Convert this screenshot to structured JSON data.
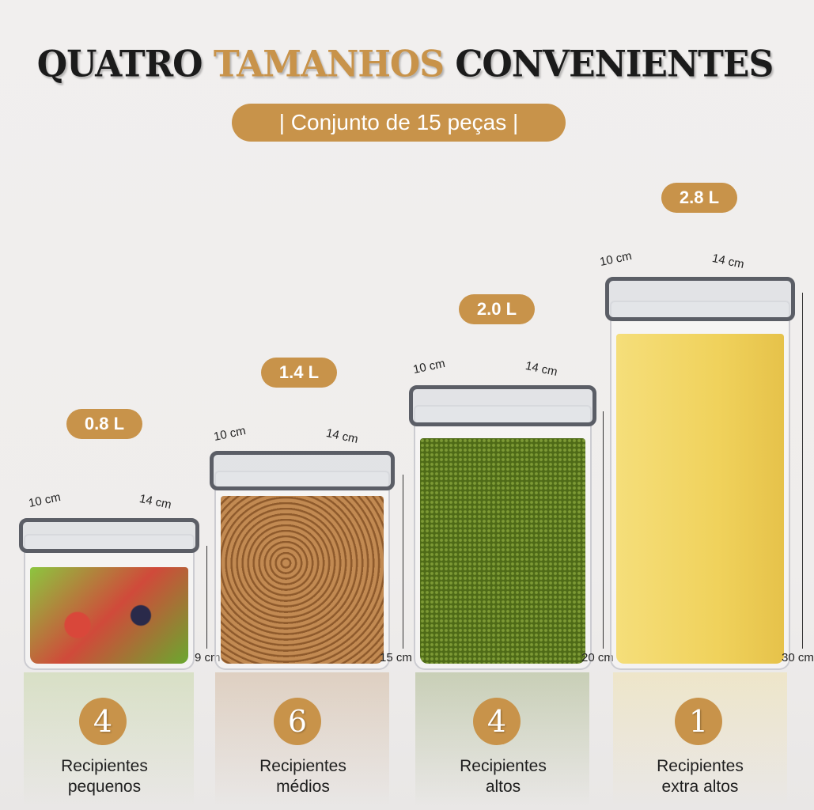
{
  "header": {
    "title_part1": "QUATRO",
    "title_part2": "TAMANHOS",
    "title_part3": "CONVENIENTES",
    "subtitle": "| Conjunto de 15 peças |"
  },
  "colors": {
    "accent": "#c8934a",
    "lid": "#5b5e66",
    "text": "#1e1e1e"
  },
  "products": [
    {
      "volume": "0.8 L",
      "width": "10 cm",
      "length": "14 cm",
      "height": "9 cm",
      "count": "4",
      "label_line1": "Recipientes",
      "label_line2": "pequenos",
      "content_color": "#7bb03a"
    },
    {
      "volume": "1.4 L",
      "width": "10 cm",
      "length": "14 cm",
      "height": "15 cm",
      "count": "6",
      "label_line1": "Recipientes",
      "label_line2": "médios",
      "content_color": "#b5804a"
    },
    {
      "volume": "2.0 L",
      "width": "10 cm",
      "length": "14 cm",
      "height": "20 cm",
      "count": "4",
      "label_line1": "Recipientes",
      "label_line2": "altos",
      "content_color": "#5d7d1f"
    },
    {
      "volume": "2.8 L",
      "width": "10 cm",
      "length": "14 cm",
      "height": "30 cm",
      "count": "1",
      "label_line1": "Recipientes",
      "label_line2": "extra altos",
      "content_color": "#f2d66a"
    }
  ]
}
